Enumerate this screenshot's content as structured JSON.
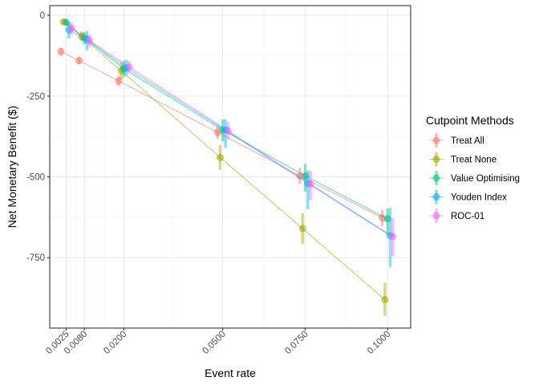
{
  "chart_data": {
    "type": "scatter",
    "title": "",
    "xlabel": "Event rate",
    "ylabel": "Net Monetary Benefit ($)",
    "xlim": [
      -0.0025,
      0.107
    ],
    "ylim": [
      -968,
      30
    ],
    "x_ticks": [
      0.0025,
      0.008,
      0.02,
      0.05,
      0.075,
      0.1
    ],
    "x_tick_labels": [
      "0.0025",
      "0.0080",
      "0.0200",
      "0.0500",
      "0.0750",
      "0.1000"
    ],
    "y_ticks": [
      0,
      -250,
      -500,
      -750
    ],
    "y_tick_labels": [
      "0",
      "-250",
      "-500",
      "-750"
    ],
    "grid": true,
    "legend": {
      "title": "Cutpoint Methods",
      "position": "right"
    },
    "x": [
      0.0025,
      0.008,
      0.02,
      0.05,
      0.075,
      0.1
    ],
    "series": [
      {
        "name": "Treat All",
        "color": "#F8766D",
        "dodge": -0.0016,
        "values": [
          -112,
          -140,
          -203,
          -362,
          -497,
          -627
        ],
        "lower": [
          -125,
          -152,
          -218,
          -382,
          -522,
          -652
        ],
        "upper": [
          -100,
          -128,
          -188,
          -342,
          -472,
          -602
        ]
      },
      {
        "name": "Treat None",
        "color": "#A3A500",
        "dodge": -0.0008,
        "values": [
          -20,
          -65,
          -172,
          -440,
          -660,
          -880
        ],
        "lower": [
          -28,
          -80,
          -200,
          -478,
          -708,
          -930
        ],
        "upper": [
          -12,
          -50,
          -145,
          -402,
          -612,
          -828
        ]
      },
      {
        "name": "Value Optimising",
        "color": "#00BF7D",
        "dodge": 0.0,
        "values": [
          -22,
          -70,
          -165,
          -355,
          -497,
          -630
        ],
        "lower": [
          -32,
          -90,
          -192,
          -390,
          -545,
          -680
        ],
        "upper": [
          -12,
          -52,
          -140,
          -322,
          -460,
          -598
        ]
      },
      {
        "name": "Youden Index",
        "color": "#00B0F6",
        "dodge": 0.0008,
        "values": [
          -45,
          -75,
          -162,
          -355,
          -520,
          -682
        ],
        "lower": [
          -72,
          -108,
          -185,
          -410,
          -600,
          -780
        ],
        "upper": [
          -20,
          -48,
          -138,
          -322,
          -480,
          -596
        ]
      },
      {
        "name": "ROC-01",
        "color": "#E76BF3",
        "dodge": 0.0016,
        "values": [
          -40,
          -78,
          -160,
          -357,
          -522,
          -685
        ],
        "lower": [
          -60,
          -98,
          -178,
          -385,
          -572,
          -745
        ],
        "upper": [
          -22,
          -60,
          -142,
          -330,
          -482,
          -628
        ]
      }
    ]
  }
}
